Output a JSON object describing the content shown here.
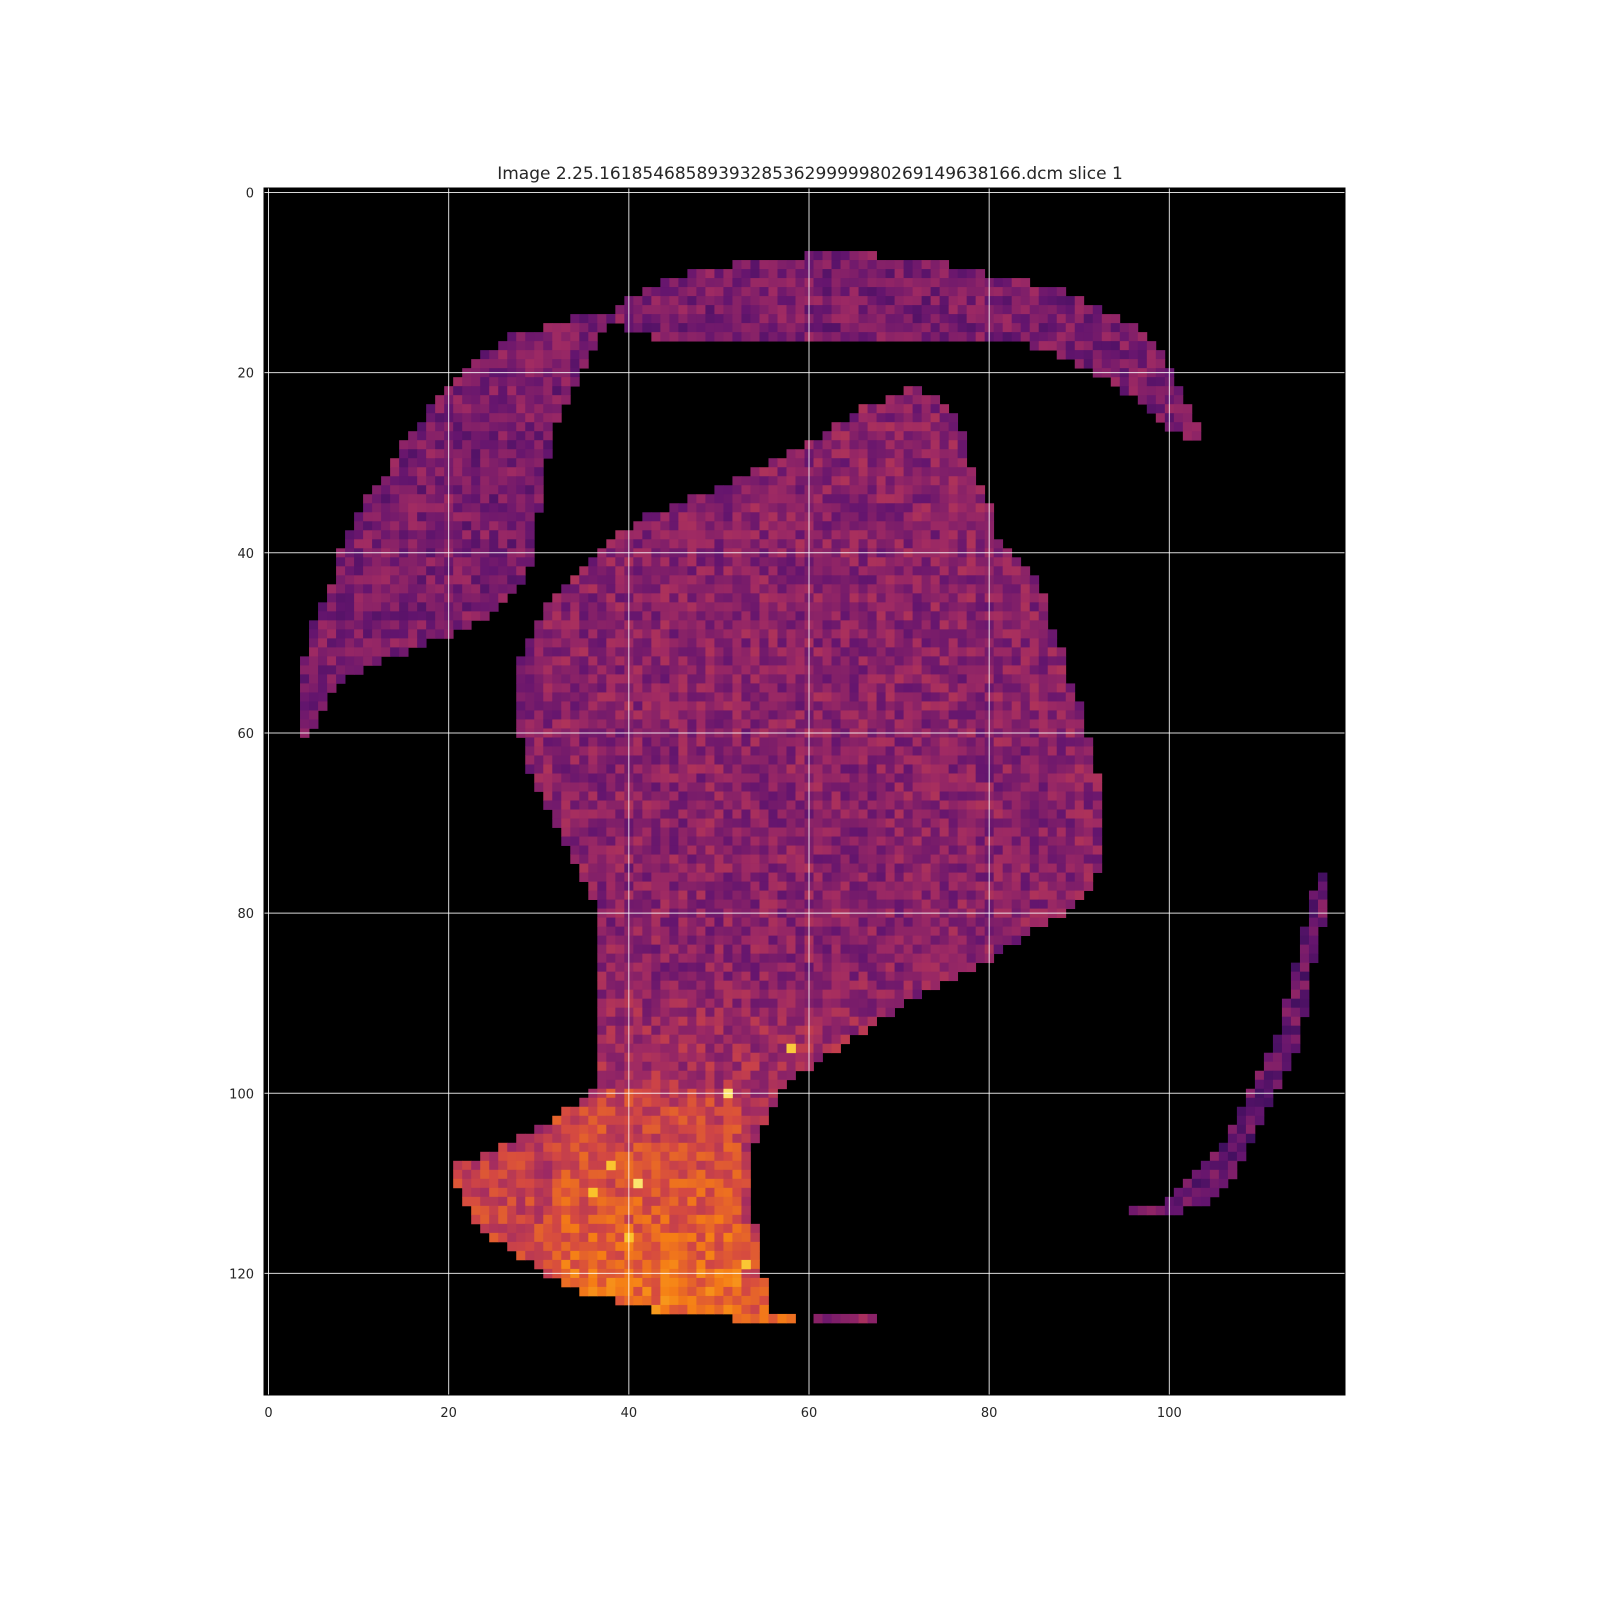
{
  "chart_data": {
    "type": "heatmap",
    "title": "Image 2.25.161854685893932853629999980269149638166.dcm slice 1",
    "xlabel": "",
    "ylabel": "",
    "xlim": [
      -0.5,
      119.5
    ],
    "ylim": [
      133.5,
      -0.5
    ],
    "xticks": [
      0,
      20,
      40,
      60,
      80,
      100
    ],
    "xtick_labels": [
      "0",
      "20",
      "40",
      "60",
      "80",
      "100"
    ],
    "yticks": [
      0,
      20,
      40,
      60,
      80,
      100,
      120
    ],
    "ytick_labels": [
      "0",
      "20",
      "40",
      "60",
      "80",
      "100",
      "120"
    ],
    "grid": true,
    "colormap": "inferno",
    "background_color": "#000000",
    "grid_color": "#ffffff",
    "image_size": {
      "columns": 120,
      "rows": 134
    },
    "regions": [
      {
        "name": "left crescent",
        "intensity": "low-medium",
        "outline_rows": [
          [
            14,
            34,
            38
          ],
          [
            16,
            27,
            36
          ],
          [
            18,
            24,
            35
          ],
          [
            20,
            22,
            34
          ],
          [
            22,
            20,
            33
          ],
          [
            24,
            18,
            32
          ],
          [
            26,
            17,
            31
          ],
          [
            28,
            15,
            31
          ],
          [
            30,
            14,
            30
          ],
          [
            32,
            13,
            30
          ],
          [
            34,
            11,
            30
          ],
          [
            36,
            10,
            29
          ],
          [
            38,
            9,
            29
          ],
          [
            40,
            8,
            29
          ],
          [
            42,
            8,
            28
          ],
          [
            44,
            7,
            27
          ],
          [
            46,
            6,
            25
          ],
          [
            48,
            5,
            22
          ],
          [
            50,
            5,
            17
          ],
          [
            52,
            4,
            12
          ],
          [
            54,
            4,
            8
          ],
          [
            56,
            4,
            6
          ],
          [
            58,
            4,
            5
          ],
          [
            60,
            4,
            4
          ]
        ]
      },
      {
        "name": "top arc",
        "intensity": "low-medium",
        "outline_rows": [
          [
            7,
            60,
            67
          ],
          [
            8,
            52,
            75
          ],
          [
            9,
            47,
            79
          ],
          [
            10,
            44,
            84
          ],
          [
            11,
            42,
            88
          ],
          [
            12,
            40,
            90
          ],
          [
            13,
            39,
            92
          ],
          [
            14,
            38,
            94
          ],
          [
            15,
            40,
            96
          ],
          [
            16,
            43,
            97
          ],
          [
            17,
            85,
            98
          ],
          [
            18,
            88,
            99
          ],
          [
            19,
            90,
            99
          ],
          [
            20,
            92,
            100
          ],
          [
            21,
            94,
            100
          ],
          [
            22,
            95,
            101
          ],
          [
            23,
            97,
            101
          ],
          [
            24,
            98,
            102
          ],
          [
            25,
            99,
            102
          ],
          [
            26,
            100,
            103
          ],
          [
            27,
            102,
            103
          ]
        ]
      },
      {
        "name": "central mass",
        "intensity": "medium",
        "outline_rows": [
          [
            22,
            71,
            72
          ],
          [
            24,
            66,
            75
          ],
          [
            26,
            63,
            76
          ],
          [
            28,
            60,
            77
          ],
          [
            30,
            56,
            77
          ],
          [
            32,
            52,
            78
          ],
          [
            34,
            47,
            79
          ],
          [
            36,
            42,
            80
          ],
          [
            38,
            39,
            80
          ],
          [
            40,
            37,
            82
          ],
          [
            42,
            35,
            84
          ],
          [
            44,
            33,
            85
          ],
          [
            46,
            31,
            86
          ],
          [
            48,
            30,
            86
          ],
          [
            50,
            29,
            87
          ],
          [
            52,
            28,
            88
          ],
          [
            54,
            28,
            88
          ],
          [
            56,
            28,
            89
          ],
          [
            58,
            28,
            90
          ],
          [
            60,
            28,
            90
          ],
          [
            62,
            29,
            91
          ],
          [
            64,
            29,
            91
          ],
          [
            66,
            30,
            92
          ],
          [
            68,
            31,
            92
          ],
          [
            70,
            32,
            92
          ],
          [
            72,
            33,
            92
          ],
          [
            74,
            34,
            92
          ],
          [
            76,
            35,
            91
          ],
          [
            78,
            36,
            90
          ],
          [
            80,
            37,
            88
          ],
          [
            82,
            37,
            84
          ],
          [
            84,
            37,
            81
          ],
          [
            86,
            37,
            78
          ],
          [
            88,
            37,
            74
          ],
          [
            90,
            37,
            70
          ],
          [
            92,
            37,
            67
          ],
          [
            94,
            37,
            64
          ],
          [
            96,
            37,
            61
          ],
          [
            98,
            37,
            58
          ],
          [
            100,
            36,
            56
          ],
          [
            102,
            33,
            55
          ],
          [
            104,
            30,
            54
          ],
          [
            106,
            26,
            53
          ],
          [
            108,
            21,
            53
          ],
          [
            110,
            21,
            53
          ],
          [
            112,
            22,
            53
          ],
          [
            114,
            23,
            53
          ],
          [
            116,
            25,
            54
          ],
          [
            118,
            28,
            54
          ],
          [
            120,
            31,
            54
          ],
          [
            122,
            35,
            55
          ],
          [
            124,
            43,
            55
          ],
          [
            125,
            52,
            58
          ]
        ]
      },
      {
        "name": "bottom fragment",
        "intensity": "medium",
        "outline_rows": [
          [
            125,
            61,
            67
          ]
        ]
      },
      {
        "name": "right arc",
        "intensity": "low",
        "outline_rows": [
          [
            76,
            117,
            117
          ],
          [
            78,
            116,
            117
          ],
          [
            80,
            116,
            117
          ],
          [
            82,
            115,
            116
          ],
          [
            84,
            115,
            116
          ],
          [
            86,
            114,
            115
          ],
          [
            88,
            114,
            115
          ],
          [
            90,
            113,
            115
          ],
          [
            92,
            113,
            114
          ],
          [
            94,
            112,
            114
          ],
          [
            96,
            111,
            113
          ],
          [
            98,
            110,
            112
          ],
          [
            100,
            109,
            111
          ],
          [
            102,
            108,
            110
          ],
          [
            104,
            107,
            109
          ],
          [
            106,
            106,
            108
          ],
          [
            108,
            104,
            107
          ],
          [
            110,
            102,
            106
          ],
          [
            112,
            100,
            104
          ],
          [
            113,
            96,
            101
          ]
        ]
      }
    ],
    "hotspots": [
      {
        "row": 111,
        "column": 36,
        "intensity": "high"
      },
      {
        "row": 119,
        "column": 53,
        "intensity": "high"
      },
      {
        "row": 110,
        "column": 41,
        "intensity": "high"
      },
      {
        "row": 116,
        "column": 40,
        "intensity": "high"
      },
      {
        "row": 100,
        "column": 51,
        "intensity": "high"
      },
      {
        "row": 108,
        "column": 38,
        "intensity": "high"
      },
      {
        "row": 95,
        "column": 58,
        "intensity": "high"
      }
    ]
  }
}
